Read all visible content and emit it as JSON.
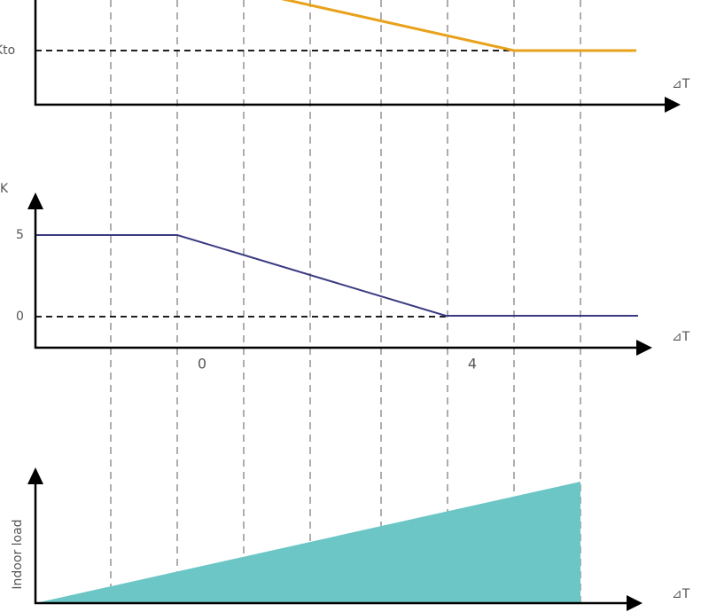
{
  "top_panel": {
    "y_label": "Kto",
    "x_label": "⊿T"
  },
  "middle_panel": {
    "y_label": "K",
    "y_ticks": [
      "5",
      "0"
    ],
    "x_ticks": [
      "0",
      "4"
    ],
    "x_label": "⊿T"
  },
  "bottom_panel": {
    "y_label": "Indoor load",
    "x_label": "⊿T"
  }
}
